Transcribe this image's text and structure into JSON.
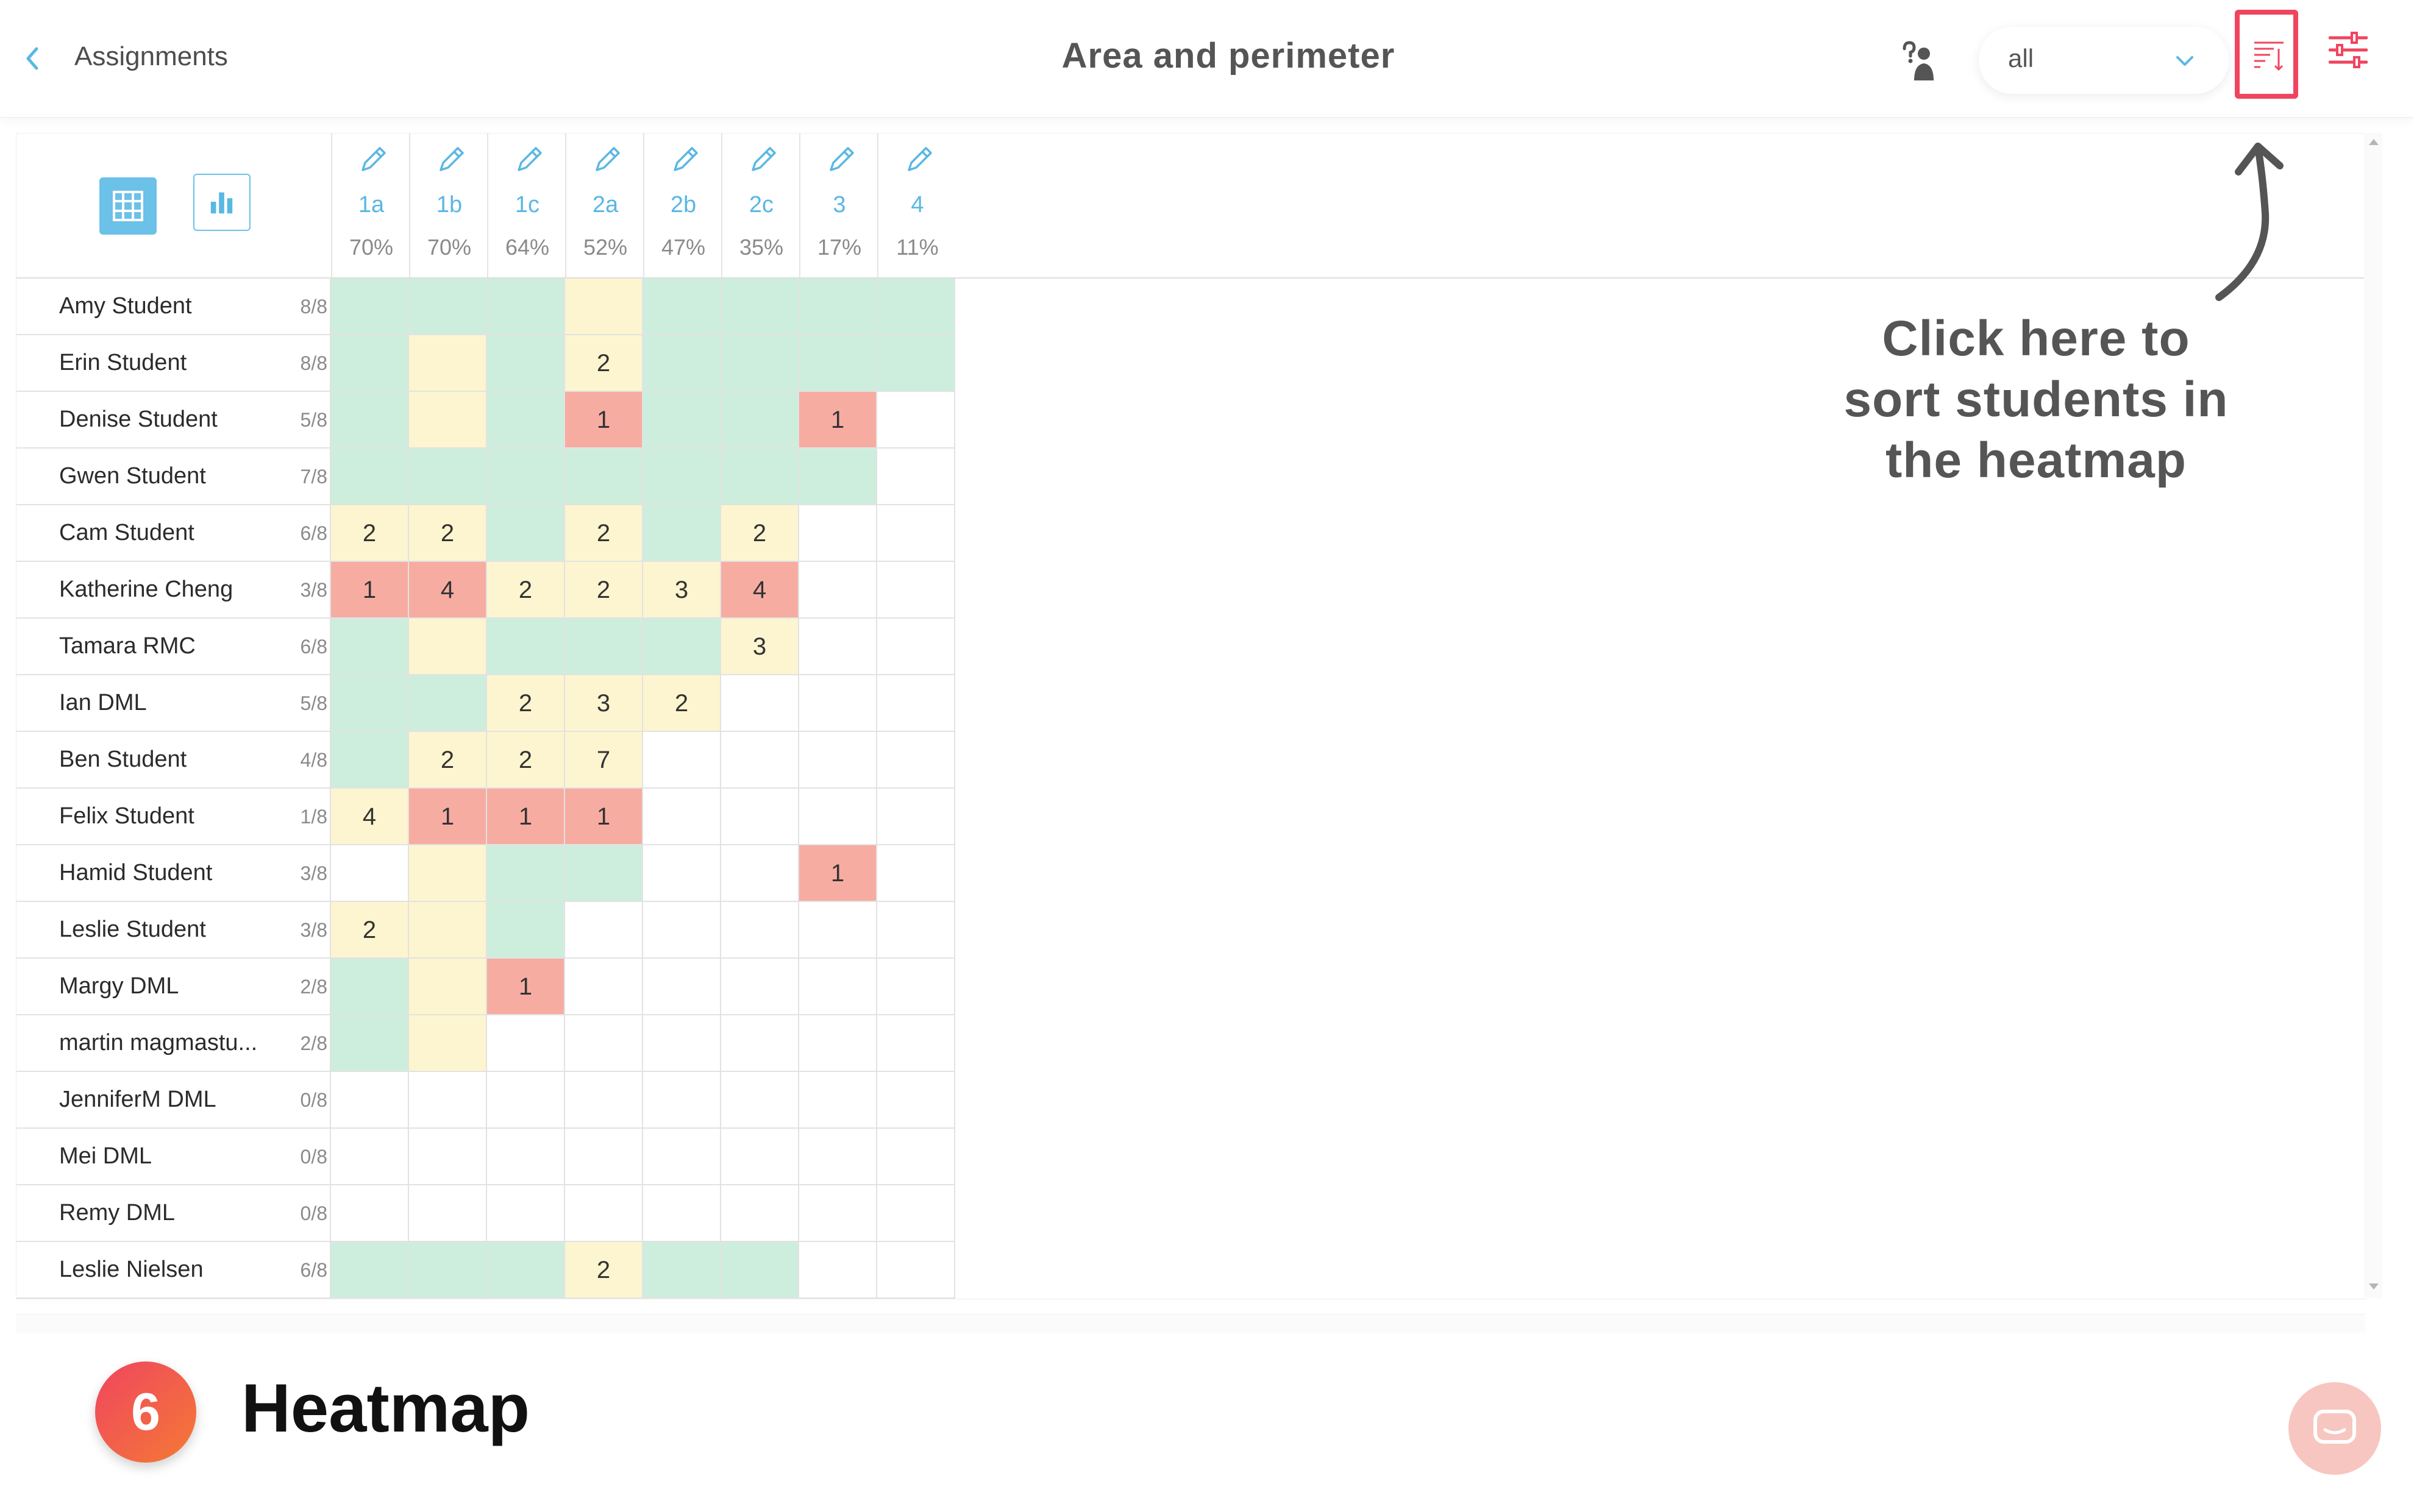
{
  "header": {
    "back_label": "Assignments",
    "title": "Area and perimeter",
    "filter_value": "all"
  },
  "colors": {
    "accent": "#6cc1e9",
    "highlight": "#f0455f",
    "correct": "#cdeedd",
    "partial": "#fdf5cf",
    "incorrect": "#f7aca2"
  },
  "icons": [
    "chevron-left-icon",
    "hand-raise-icon",
    "chevron-down-icon",
    "sort-icon",
    "sliders-icon",
    "grid-icon",
    "bar-chart-icon",
    "pencil-icon",
    "chat-icon"
  ],
  "questions": [
    {
      "label": "1a",
      "pct": "70%"
    },
    {
      "label": "1b",
      "pct": "70%"
    },
    {
      "label": "1c",
      "pct": "64%"
    },
    {
      "label": "2a",
      "pct": "52%"
    },
    {
      "label": "2b",
      "pct": "47%"
    },
    {
      "label": "2c",
      "pct": "35%"
    },
    {
      "label": "3",
      "pct": "17%"
    },
    {
      "label": "4",
      "pct": "11%"
    }
  ],
  "students": [
    {
      "name": "Amy Student",
      "score": "8/8",
      "cells": [
        [
          "g",
          ""
        ],
        [
          "g",
          ""
        ],
        [
          "g",
          ""
        ],
        [
          "y",
          ""
        ],
        [
          "g",
          ""
        ],
        [
          "g",
          ""
        ],
        [
          "g",
          ""
        ],
        [
          "g",
          ""
        ]
      ]
    },
    {
      "name": "Erin Student",
      "score": "8/8",
      "cells": [
        [
          "g",
          ""
        ],
        [
          "y",
          ""
        ],
        [
          "g",
          ""
        ],
        [
          "y",
          "2"
        ],
        [
          "g",
          ""
        ],
        [
          "g",
          ""
        ],
        [
          "g",
          ""
        ],
        [
          "g",
          ""
        ]
      ]
    },
    {
      "name": "Denise Student",
      "score": "5/8",
      "cells": [
        [
          "g",
          ""
        ],
        [
          "y",
          ""
        ],
        [
          "g",
          ""
        ],
        [
          "r",
          "1"
        ],
        [
          "g",
          ""
        ],
        [
          "g",
          ""
        ],
        [
          "r",
          "1"
        ],
        [
          "w",
          ""
        ]
      ]
    },
    {
      "name": "Gwen Student",
      "score": "7/8",
      "cells": [
        [
          "g",
          ""
        ],
        [
          "g",
          ""
        ],
        [
          "g",
          ""
        ],
        [
          "g",
          ""
        ],
        [
          "g",
          ""
        ],
        [
          "g",
          ""
        ],
        [
          "g",
          ""
        ],
        [
          "w",
          ""
        ]
      ]
    },
    {
      "name": "Cam Student",
      "score": "6/8",
      "cells": [
        [
          "y",
          "2"
        ],
        [
          "y",
          "2"
        ],
        [
          "g",
          ""
        ],
        [
          "y",
          "2"
        ],
        [
          "g",
          ""
        ],
        [
          "y",
          "2"
        ],
        [
          "w",
          ""
        ],
        [
          "w",
          ""
        ]
      ]
    },
    {
      "name": "Katherine Cheng",
      "score": "3/8",
      "cells": [
        [
          "r",
          "1"
        ],
        [
          "r",
          "4"
        ],
        [
          "y",
          "2"
        ],
        [
          "y",
          "2"
        ],
        [
          "y",
          "3"
        ],
        [
          "r",
          "4"
        ],
        [
          "w",
          ""
        ],
        [
          "w",
          ""
        ]
      ]
    },
    {
      "name": "Tamara RMC",
      "score": "6/8",
      "cells": [
        [
          "g",
          ""
        ],
        [
          "y",
          ""
        ],
        [
          "g",
          ""
        ],
        [
          "g",
          ""
        ],
        [
          "g",
          ""
        ],
        [
          "y",
          "3"
        ],
        [
          "w",
          ""
        ],
        [
          "w",
          ""
        ]
      ]
    },
    {
      "name": "Ian DML",
      "score": "5/8",
      "cells": [
        [
          "g",
          ""
        ],
        [
          "g",
          ""
        ],
        [
          "y",
          "2"
        ],
        [
          "y",
          "3"
        ],
        [
          "y",
          "2"
        ],
        [
          "w",
          ""
        ],
        [
          "w",
          ""
        ],
        [
          "w",
          ""
        ]
      ]
    },
    {
      "name": "Ben Student",
      "score": "4/8",
      "cells": [
        [
          "g",
          ""
        ],
        [
          "y",
          "2"
        ],
        [
          "y",
          "2"
        ],
        [
          "y",
          "7"
        ],
        [
          "w",
          ""
        ],
        [
          "w",
          ""
        ],
        [
          "w",
          ""
        ],
        [
          "w",
          ""
        ]
      ]
    },
    {
      "name": "Felix Student",
      "score": "1/8",
      "cells": [
        [
          "y",
          "4"
        ],
        [
          "r",
          "1"
        ],
        [
          "r",
          "1"
        ],
        [
          "r",
          "1"
        ],
        [
          "w",
          ""
        ],
        [
          "w",
          ""
        ],
        [
          "w",
          ""
        ],
        [
          "w",
          ""
        ]
      ]
    },
    {
      "name": "Hamid Student",
      "score": "3/8",
      "cells": [
        [
          "w",
          ""
        ],
        [
          "y",
          ""
        ],
        [
          "g",
          ""
        ],
        [
          "g",
          ""
        ],
        [
          "w",
          ""
        ],
        [
          "w",
          ""
        ],
        [
          "r",
          "1"
        ],
        [
          "w",
          ""
        ]
      ]
    },
    {
      "name": "Leslie Student",
      "score": "3/8",
      "cells": [
        [
          "y",
          "2"
        ],
        [
          "y",
          ""
        ],
        [
          "g",
          ""
        ],
        [
          "w",
          ""
        ],
        [
          "w",
          ""
        ],
        [
          "w",
          ""
        ],
        [
          "w",
          ""
        ],
        [
          "w",
          ""
        ]
      ]
    },
    {
      "name": "Margy DML",
      "score": "2/8",
      "cells": [
        [
          "g",
          ""
        ],
        [
          "y",
          ""
        ],
        [
          "r",
          "1"
        ],
        [
          "w",
          ""
        ],
        [
          "w",
          ""
        ],
        [
          "w",
          ""
        ],
        [
          "w",
          ""
        ],
        [
          "w",
          ""
        ]
      ]
    },
    {
      "name": "martin magmastu...",
      "score": "2/8",
      "cells": [
        [
          "g",
          ""
        ],
        [
          "y",
          ""
        ],
        [
          "w",
          ""
        ],
        [
          "w",
          ""
        ],
        [
          "w",
          ""
        ],
        [
          "w",
          ""
        ],
        [
          "w",
          ""
        ],
        [
          "w",
          ""
        ]
      ]
    },
    {
      "name": "JenniferM DML",
      "score": "0/8",
      "cells": [
        [
          "w",
          ""
        ],
        [
          "w",
          ""
        ],
        [
          "w",
          ""
        ],
        [
          "w",
          ""
        ],
        [
          "w",
          ""
        ],
        [
          "w",
          ""
        ],
        [
          "w",
          ""
        ],
        [
          "w",
          ""
        ]
      ]
    },
    {
      "name": "Mei DML",
      "score": "0/8",
      "cells": [
        [
          "w",
          ""
        ],
        [
          "w",
          ""
        ],
        [
          "w",
          ""
        ],
        [
          "w",
          ""
        ],
        [
          "w",
          ""
        ],
        [
          "w",
          ""
        ],
        [
          "w",
          ""
        ],
        [
          "w",
          ""
        ]
      ]
    },
    {
      "name": "Remy DML",
      "score": "0/8",
      "cells": [
        [
          "w",
          ""
        ],
        [
          "w",
          ""
        ],
        [
          "w",
          ""
        ],
        [
          "w",
          ""
        ],
        [
          "w",
          ""
        ],
        [
          "w",
          ""
        ],
        [
          "w",
          ""
        ],
        [
          "w",
          ""
        ]
      ]
    },
    {
      "name": "Leslie Nielsen",
      "score": "6/8",
      "cells": [
        [
          "g",
          ""
        ],
        [
          "g",
          ""
        ],
        [
          "g",
          ""
        ],
        [
          "y",
          "2"
        ],
        [
          "g",
          ""
        ],
        [
          "g",
          ""
        ],
        [
          "w",
          ""
        ],
        [
          "w",
          ""
        ]
      ]
    }
  ],
  "annotation": {
    "line1": "Click here to",
    "line2": "sort students in",
    "line3": "the heatmap"
  },
  "caption": {
    "step": "6",
    "title": "Heatmap"
  }
}
